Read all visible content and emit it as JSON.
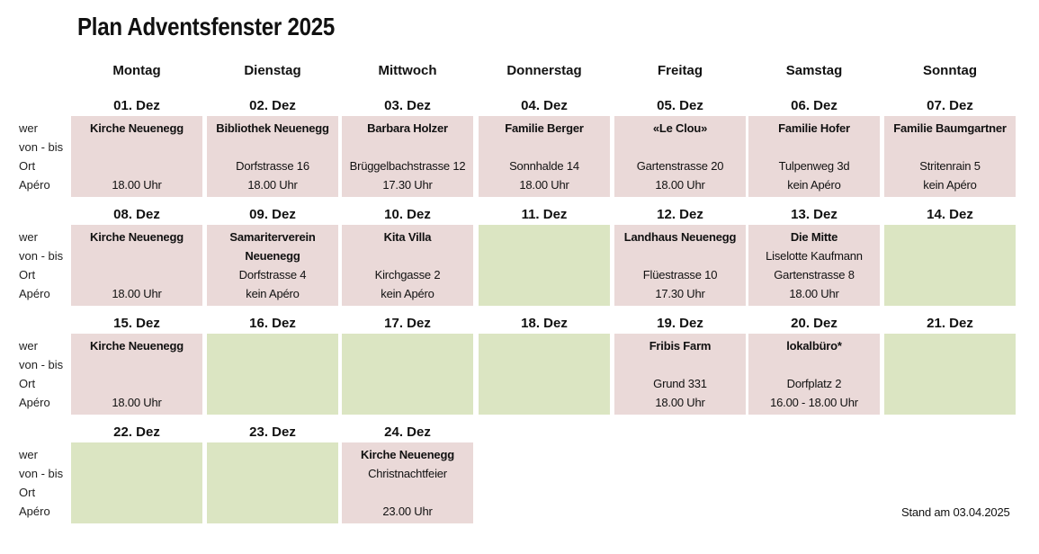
{
  "title": "Plan Adventsfenster 2025",
  "stand": "Stand am 03.04.2025",
  "row_labels": [
    "wer",
    "von - bis",
    "Ort",
    "Apéro"
  ],
  "days": [
    "Montag",
    "Dienstag",
    "Mittwoch",
    "Donnerstag",
    "Freitag",
    "Samstag",
    "Sonntag"
  ],
  "colors": {
    "booked": "#ead9d8",
    "free": "#dbe5c2"
  },
  "weeks": [
    [
      {
        "date": "01. Dez",
        "status": "booked",
        "lines": [
          {
            "t": "Kirche Neuenegg",
            "b": true
          },
          {
            "t": ""
          },
          {
            "t": ""
          },
          {
            "t": "18.00 Uhr"
          }
        ]
      },
      {
        "date": "02. Dez",
        "status": "booked",
        "lines": [
          {
            "t": "Bibliothek Neuenegg",
            "b": true
          },
          {
            "t": ""
          },
          {
            "t": "Dorfstrasse 16"
          },
          {
            "t": "18.00 Uhr"
          }
        ]
      },
      {
        "date": "03. Dez",
        "status": "booked",
        "lines": [
          {
            "t": "Barbara Holzer",
            "b": true
          },
          {
            "t": ""
          },
          {
            "t": "Brüggelbachstrasse 12"
          },
          {
            "t": "17.30 Uhr"
          }
        ]
      },
      {
        "date": "04. Dez",
        "status": "booked",
        "lines": [
          {
            "t": "Familie Berger",
            "b": true
          },
          {
            "t": ""
          },
          {
            "t": "Sonnhalde 14"
          },
          {
            "t": "18.00 Uhr"
          }
        ]
      },
      {
        "date": "05. Dez",
        "status": "booked",
        "lines": [
          {
            "t": "«Le Clou»",
            "b": true
          },
          {
            "t": ""
          },
          {
            "t": "Gartenstrasse 20"
          },
          {
            "t": "18.00 Uhr"
          }
        ]
      },
      {
        "date": "06. Dez",
        "status": "booked",
        "lines": [
          {
            "t": "Familie Hofer",
            "b": true
          },
          {
            "t": ""
          },
          {
            "t": "Tulpenweg 3d"
          },
          {
            "t": "kein Apéro"
          }
        ]
      },
      {
        "date": "07. Dez",
        "status": "booked",
        "lines": [
          {
            "t": "Familie Baumgartner",
            "b": true
          },
          {
            "t": ""
          },
          {
            "t": "Stritenrain 5"
          },
          {
            "t": "kein Apéro"
          }
        ]
      }
    ],
    [
      {
        "date": "08. Dez",
        "status": "booked",
        "lines": [
          {
            "t": "Kirche Neuenegg",
            "b": true
          },
          {
            "t": ""
          },
          {
            "t": ""
          },
          {
            "t": "18.00 Uhr"
          }
        ]
      },
      {
        "date": "09. Dez",
        "status": "booked",
        "lines": [
          {
            "t": "Samariterverein",
            "b": true
          },
          {
            "t": "Neuenegg",
            "b": true
          },
          {
            "t": "Dorfstrasse 4"
          },
          {
            "t": "kein Apéro"
          }
        ]
      },
      {
        "date": "10. Dez",
        "status": "booked",
        "lines": [
          {
            "t": "Kita Villa",
            "b": true
          },
          {
            "t": ""
          },
          {
            "t": "Kirchgasse 2"
          },
          {
            "t": "kein Apéro"
          }
        ]
      },
      {
        "date": "11. Dez",
        "status": "free",
        "lines": [
          {
            "t": ""
          },
          {
            "t": ""
          },
          {
            "t": ""
          },
          {
            "t": ""
          }
        ]
      },
      {
        "date": "12. Dez",
        "status": "booked",
        "lines": [
          {
            "t": "Landhaus Neuenegg",
            "b": true
          },
          {
            "t": ""
          },
          {
            "t": "Flüestrasse 10"
          },
          {
            "t": "17.30 Uhr"
          }
        ]
      },
      {
        "date": "13. Dez",
        "status": "booked",
        "lines": [
          {
            "t": "Die Mitte",
            "b": true
          },
          {
            "t": "Liselotte Kaufmann"
          },
          {
            "t": "Gartenstrasse 8"
          },
          {
            "t": "18.00 Uhr"
          }
        ]
      },
      {
        "date": "14. Dez",
        "status": "free",
        "lines": [
          {
            "t": ""
          },
          {
            "t": ""
          },
          {
            "t": ""
          },
          {
            "t": ""
          }
        ]
      }
    ],
    [
      {
        "date": "15. Dez",
        "status": "booked",
        "lines": [
          {
            "t": "Kirche Neuenegg",
            "b": true
          },
          {
            "t": ""
          },
          {
            "t": ""
          },
          {
            "t": "18.00 Uhr"
          }
        ]
      },
      {
        "date": "16. Dez",
        "status": "free",
        "lines": [
          {
            "t": ""
          },
          {
            "t": ""
          },
          {
            "t": ""
          },
          {
            "t": ""
          }
        ]
      },
      {
        "date": "17. Dez",
        "status": "free",
        "lines": [
          {
            "t": ""
          },
          {
            "t": ""
          },
          {
            "t": ""
          },
          {
            "t": ""
          }
        ]
      },
      {
        "date": "18. Dez",
        "status": "free",
        "lines": [
          {
            "t": ""
          },
          {
            "t": ""
          },
          {
            "t": ""
          },
          {
            "t": ""
          }
        ]
      },
      {
        "date": "19. Dez",
        "status": "booked",
        "lines": [
          {
            "t": "Fribis Farm",
            "b": true
          },
          {
            "t": ""
          },
          {
            "t": "Grund 331"
          },
          {
            "t": "18.00 Uhr"
          }
        ]
      },
      {
        "date": "20. Dez",
        "status": "booked",
        "lines": [
          {
            "t": "lokalbüro*",
            "b": true
          },
          {
            "t": ""
          },
          {
            "t": "Dorfplatz 2"
          },
          {
            "t": "16.00 - 18.00 Uhr"
          }
        ]
      },
      {
        "date": "21. Dez",
        "status": "free",
        "lines": [
          {
            "t": ""
          },
          {
            "t": ""
          },
          {
            "t": ""
          },
          {
            "t": ""
          }
        ]
      }
    ],
    [
      {
        "date": "22. Dez",
        "status": "free",
        "lines": [
          {
            "t": ""
          },
          {
            "t": ""
          },
          {
            "t": ""
          },
          {
            "t": ""
          }
        ]
      },
      {
        "date": "23. Dez",
        "status": "free",
        "lines": [
          {
            "t": ""
          },
          {
            "t": ""
          },
          {
            "t": ""
          },
          {
            "t": ""
          }
        ]
      },
      {
        "date": "24. Dez",
        "status": "booked",
        "lines": [
          {
            "t": "Kirche Neuenegg",
            "b": true
          },
          {
            "t": "Christnachtfeier"
          },
          {
            "t": ""
          },
          {
            "t": "23.00 Uhr"
          }
        ]
      }
    ]
  ]
}
